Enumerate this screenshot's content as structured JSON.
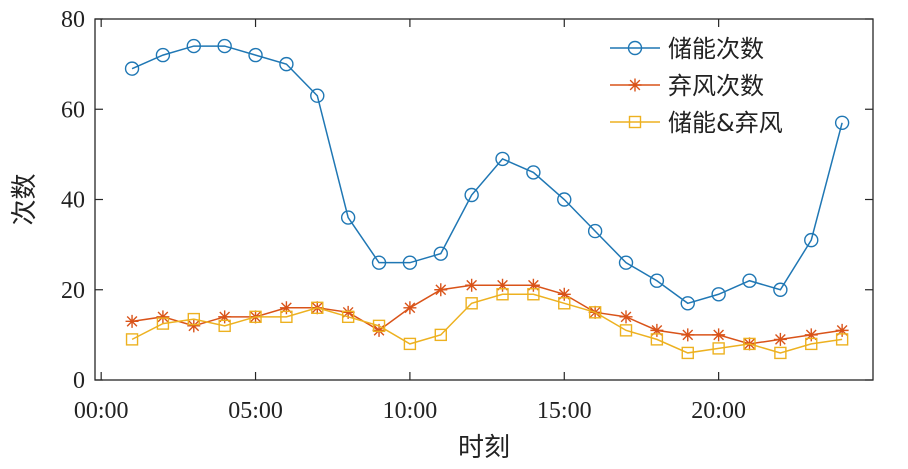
{
  "chart_data": {
    "type": "line",
    "xlabel": "时刻",
    "ylabel": "次数",
    "x": [
      "01:00",
      "02:00",
      "03:00",
      "04:00",
      "05:00",
      "06:00",
      "07:00",
      "08:00",
      "09:00",
      "10:00",
      "11:00",
      "12:00",
      "13:00",
      "14:00",
      "15:00",
      "16:00",
      "17:00",
      "18:00",
      "19:00",
      "20:00",
      "21:00",
      "22:00",
      "23:00",
      "24:00"
    ],
    "x_hours": [
      1,
      2,
      3,
      4,
      5,
      6,
      7,
      8,
      9,
      10,
      11,
      12,
      13,
      14,
      15,
      16,
      17,
      18,
      19,
      20,
      21,
      22,
      23,
      24
    ],
    "xlim_hours": [
      -0.2,
      25
    ],
    "xticks": [
      "00:00",
      "05:00",
      "10:00",
      "15:00",
      "20:00"
    ],
    "xtick_hours": [
      0,
      5,
      10,
      15,
      20
    ],
    "ylim": [
      0,
      80
    ],
    "yticks": [
      0,
      20,
      40,
      60,
      80
    ],
    "grid": false,
    "legend_position": "top-right",
    "series": [
      {
        "name": "储能次数",
        "color": "#1f77b4",
        "marker": "circle",
        "values": [
          69,
          72,
          74,
          74,
          72,
          70,
          63,
          36,
          26,
          26,
          28,
          41,
          49,
          46,
          40,
          33,
          26,
          22,
          17,
          19,
          22,
          20,
          31,
          57
        ]
      },
      {
        "name": "弃风次数",
        "color": "#d95319",
        "marker": "asterisk",
        "values": [
          13,
          14,
          12,
          14,
          14,
          16,
          16,
          15,
          11,
          16,
          20,
          21,
          21,
          21,
          19,
          15,
          14,
          11,
          10,
          10,
          8,
          9,
          10,
          11
        ]
      },
      {
        "name": "储能&弃风",
        "color": "#edb120",
        "marker": "square",
        "values": [
          9,
          12.5,
          13.5,
          12,
          14,
          14,
          16,
          14,
          12,
          8,
          10,
          17,
          19,
          19,
          17,
          15,
          11,
          9,
          6,
          7,
          8,
          6,
          8,
          9
        ]
      }
    ]
  }
}
